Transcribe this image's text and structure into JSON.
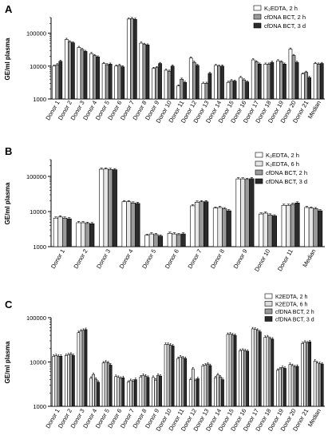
{
  "chart_data": [
    {
      "panel_label": "A",
      "type": "bar",
      "ylabel": "GE/ml plasma",
      "yscale": "log",
      "ylim": [
        1000,
        300000
      ],
      "yticks": [
        "1000",
        "10000",
        "100000"
      ],
      "categories": [
        "Donor 1",
        "Donor 2",
        "Donor 3",
        "Donor 4",
        "Donor 5",
        "Donor 6",
        "Donor 7",
        "Donor 8",
        "Donor 9",
        "Donor 10",
        "Donor 11",
        "Donor 12",
        "Donor 13",
        "Donor 14",
        "Donor 15",
        "Donor 16",
        "Donor 17",
        "Donor 18",
        "Donor 19",
        "Donor 20",
        "Donor 21",
        "Median"
      ],
      "legend_position": "top-right",
      "series": [
        {
          "name": "K₂EDTA, 2 h",
          "color": "#ffffff",
          "values": [
            10000,
            65000,
            37000,
            24000,
            12000,
            10000,
            270000,
            50000,
            8500,
            7500,
            2500,
            17500,
            3000,
            10500,
            3200,
            4500,
            15500,
            11500,
            14500,
            33000,
            5800,
            12000
          ]
        },
        {
          "name": "cfDNA BCT, 2 h",
          "color": "#9a9a9a",
          "values": [
            11000,
            55000,
            32000,
            21000,
            11000,
            10500,
            280000,
            46000,
            9000,
            7000,
            4000,
            13000,
            3000,
            10000,
            3600,
            3800,
            13500,
            11500,
            13500,
            21000,
            6500,
            11500
          ]
        },
        {
          "name": "cfDNA BCT, 3 d",
          "color": "#2b2b2b",
          "values": [
            14000,
            51000,
            28000,
            19000,
            11500,
            9500,
            265000,
            44000,
            12000,
            10000,
            3200,
            10500,
            6000,
            10000,
            3500,
            3300,
            11500,
            13000,
            11500,
            13000,
            4500,
            12000
          ]
        }
      ]
    },
    {
      "panel_label": "B",
      "type": "bar",
      "ylabel": "GE/ml plasma",
      "yscale": "log",
      "ylim": [
        1000,
        300000
      ],
      "yticks": [
        "1000",
        "10000",
        "100000"
      ],
      "categories": [
        "Donor 1",
        "Donor 2",
        "Donor 3",
        "Donor 4",
        "Donor 5",
        "Donor 6",
        "Donor 7",
        "Donor 8",
        "Donor 9",
        "Donor 10",
        "Donor 11",
        "Median"
      ],
      "legend_position": "top-right",
      "series": [
        {
          "name": "K₂EDTA, 2 h",
          "color": "#ffffff",
          "values": [
            6500,
            4800,
            160000,
            19000,
            2100,
            2400,
            14500,
            12500,
            85000,
            8500,
            15000,
            13000
          ]
        },
        {
          "name": "K₂EDTA, 6 h",
          "color": "#e6e6e6",
          "values": [
            7000,
            4800,
            162000,
            19000,
            2300,
            2300,
            18500,
            13000,
            85000,
            9000,
            15000,
            12500
          ]
        },
        {
          "name": "cfDNA BCT, 2 h",
          "color": "#9a9a9a",
          "values": [
            6500,
            4600,
            158000,
            17500,
            2200,
            2200,
            19000,
            12000,
            82000,
            8000,
            16000,
            12000
          ]
        },
        {
          "name": "cfDNA BCT, 3 d",
          "color": "#2b2b2b",
          "values": [
            6200,
            4500,
            155000,
            17000,
            2000,
            2300,
            19000,
            10500,
            86000,
            7500,
            17500,
            10500
          ]
        }
      ]
    },
    {
      "panel_label": "C",
      "type": "bar",
      "ylabel": "GE/ml plasma",
      "yscale": "log",
      "ylim": [
        1000,
        100000
      ],
      "yticks": [
        "1000",
        "10000",
        "100000"
      ],
      "categories": [
        "Donor 1",
        "Donor 2",
        "Donor 3",
        "Donor 4",
        "Donor 5",
        "Donor 6",
        "Donor 7",
        "Donor 8",
        "Donor 9",
        "Donor 10",
        "Donor 11",
        "Donor 12",
        "Donor 13",
        "Donor 14",
        "Donor 15",
        "Donor 16",
        "Donor 17",
        "Donor 18",
        "Donor 19",
        "Donor 20",
        "Donor 21",
        "Median"
      ],
      "legend_position": "top-right",
      "series": [
        {
          "name": "K2EDTA, 2 h",
          "color": "#ffffff",
          "values": [
            13500,
            14000,
            46000,
            4300,
            9500,
            4700,
            3500,
            4600,
            4500,
            25000,
            12000,
            4000,
            8200,
            4400,
            42000,
            18000,
            56000,
            36000,
            6500,
            8800,
            26000,
            10500
          ]
        },
        {
          "name": "K2EDTA, 6 h",
          "color": "#dcdcdc",
          "values": [
            14000,
            14500,
            50000,
            5200,
            10000,
            4500,
            3800,
            5000,
            3900,
            25000,
            13000,
            7000,
            8500,
            5100,
            43000,
            18500,
            55000,
            37000,
            7000,
            8300,
            28000,
            9500
          ]
        },
        {
          "name": "cfDNA BCT, 2 h",
          "color": "#9a9a9a",
          "values": [
            13500,
            15000,
            52000,
            4100,
            9500,
            4300,
            3700,
            4800,
            5000,
            24000,
            12500,
            3800,
            9000,
            4600,
            41000,
            18000,
            52000,
            34000,
            7500,
            7800,
            27000,
            9200
          ]
        },
        {
          "name": "cfDNA BCT, 3 d",
          "color": "#2b2b2b",
          "values": [
            13500,
            14000,
            54000,
            3500,
            8500,
            4400,
            4000,
            4500,
            4800,
            23000,
            12000,
            4200,
            8300,
            4000,
            40000,
            17500,
            48000,
            33000,
            7200,
            8000,
            28500,
            9000
          ]
        }
      ]
    }
  ]
}
